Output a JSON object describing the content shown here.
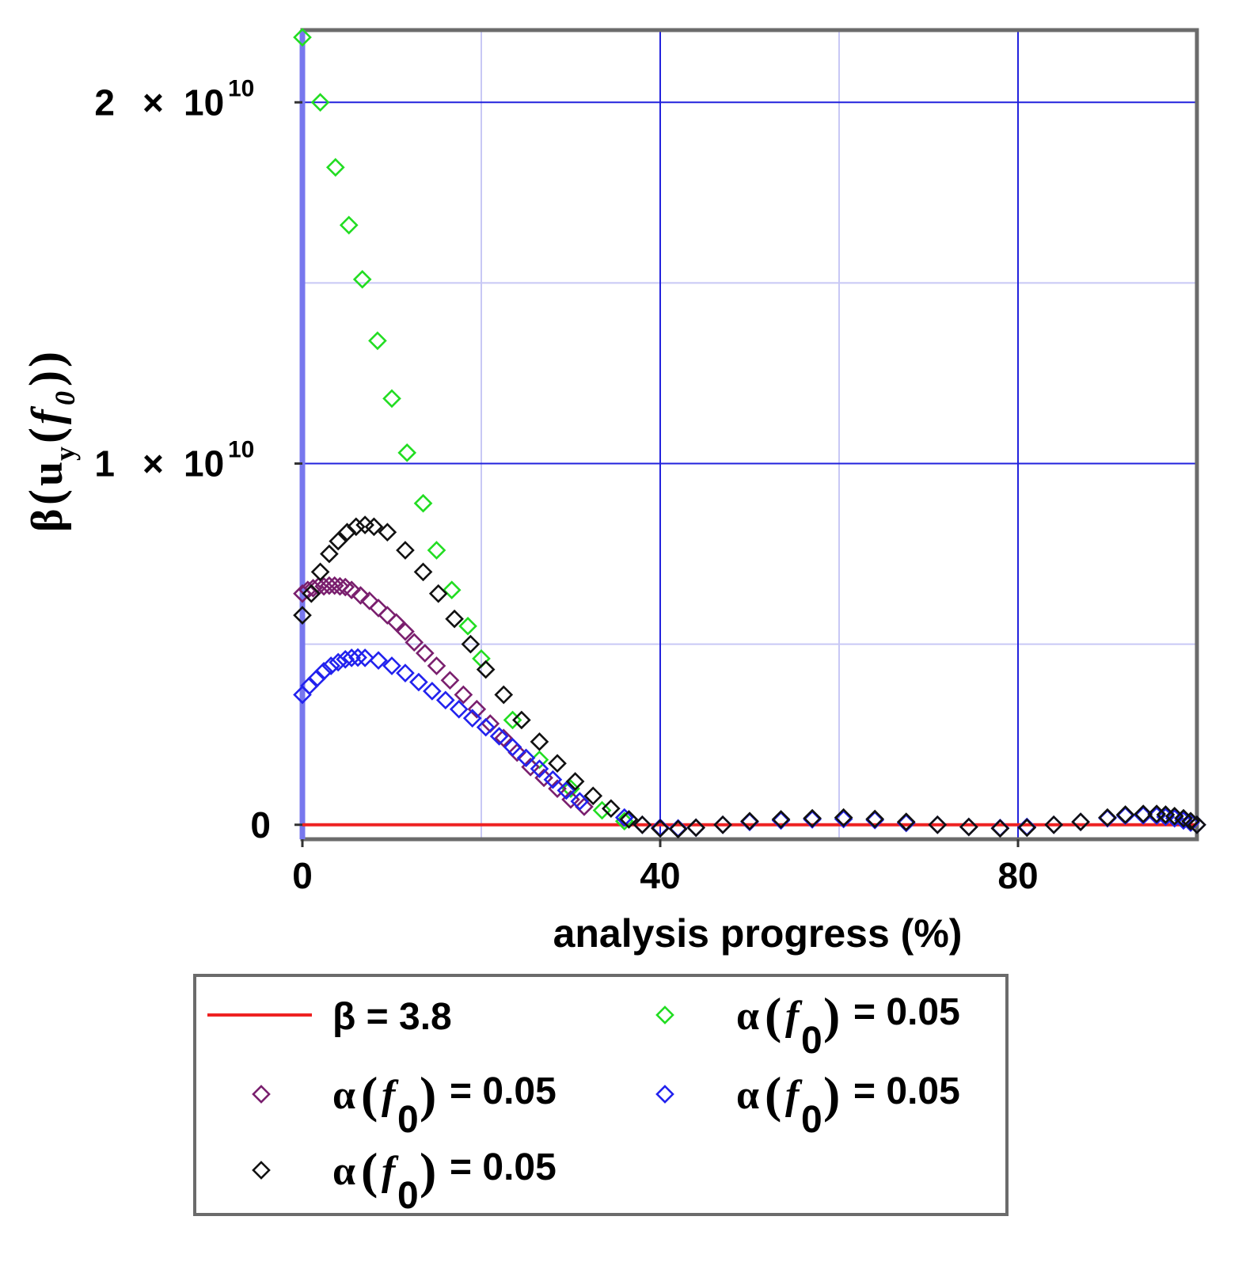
{
  "chart_data": {
    "type": "scatter",
    "xlabel": "analysis progress (%)",
    "ylabel": {
      "prefix": "β",
      "var": "u",
      "var_sub": "y",
      "arg": "f",
      "arg_sub": "0"
    },
    "xlim": [
      0,
      100
    ],
    "ylim": [
      -400000000,
      22000000000
    ],
    "x_ticks": [
      {
        "value": 0,
        "label": "0"
      },
      {
        "value": 40,
        "label": "40"
      },
      {
        "value": 80,
        "label": "80"
      }
    ],
    "y_ticks": [
      {
        "value": 0,
        "mantissa": "0",
        "times": "",
        "base": "",
        "exp": ""
      },
      {
        "value": 10000000000,
        "mantissa": "1",
        "times": "×",
        "base": "10",
        "exp": "10"
      },
      {
        "value": 20000000000,
        "mantissa": "2",
        "times": "×",
        "base": "10",
        "exp": "10"
      }
    ],
    "grid": true,
    "legend_position": "bottom",
    "series": [
      {
        "name": "β = 3.8",
        "legend": {
          "prefix": "β = 3.8"
        },
        "kind": "line",
        "color": "#ee2222",
        "x": [
          0,
          100
        ],
        "y": [
          0,
          0
        ]
      },
      {
        "name": "α(f0) = 0.05",
        "legend": {
          "prefix": "α",
          "arg": "f",
          "arg_sub": "0",
          "suffix": "= 0.05"
        },
        "kind": "markers",
        "color": "#22dd22",
        "x": [
          0,
          2,
          3.7,
          5.2,
          6.7,
          8.4,
          10,
          11.7,
          13.5,
          15,
          16.7,
          18.5,
          20,
          23.5,
          26.5,
          30,
          33.5,
          36
        ],
        "y": [
          21800000000,
          20000000000,
          18200000000,
          16600000000,
          15100000000,
          13400000000,
          11800000000,
          10300000000,
          8900000000,
          7600000000,
          6500000000,
          5500000000,
          4600000000,
          2900000000,
          1800000000,
          1000000000,
          400000000,
          100000000
        ]
      },
      {
        "name": "α(f0) = 0.05",
        "legend": {
          "prefix": "α",
          "arg": "f",
          "arg_sub": "0",
          "suffix": "= 0.05"
        },
        "kind": "markers",
        "color": "#7a1f6e",
        "x": [
          0,
          0.6,
          1.2,
          1.8,
          2.4,
          3,
          3.6,
          4.2,
          4.8,
          5.5,
          6.5,
          7.5,
          8.5,
          9.5,
          10.5,
          11.5,
          12.5,
          13.7,
          15,
          16.5,
          18,
          19.5,
          21,
          22.5,
          24,
          25.5,
          27,
          28.5,
          30,
          31.5
        ],
        "y": [
          6400000000,
          6500000000,
          6550000000,
          6600000000,
          6600000000,
          6620000000,
          6620000000,
          6600000000,
          6580000000,
          6500000000,
          6350000000,
          6200000000,
          6000000000,
          5800000000,
          5600000000,
          5350000000,
          5050000000,
          4750000000,
          4400000000,
          4000000000,
          3600000000,
          3200000000,
          2800000000,
          2400000000,
          2000000000,
          1600000000,
          1300000000,
          1000000000,
          700000000,
          500000000
        ]
      },
      {
        "name": "α(f0) = 0.05",
        "legend": {
          "prefix": "α",
          "arg": "f",
          "arg_sub": "0",
          "suffix": "= 0.05"
        },
        "kind": "markers",
        "color": "#2222ee",
        "x": [
          0,
          0.8,
          1.6,
          2.4,
          3.2,
          4,
          4.8,
          5.5,
          6.2,
          7,
          8.5,
          10,
          11.5,
          13,
          14.5,
          16,
          17.5,
          19,
          20.5,
          22,
          23.5,
          25,
          26.5,
          28,
          29.5,
          31,
          36,
          38,
          40,
          42,
          44,
          47,
          50,
          53.5,
          57,
          60.5,
          64,
          67.5,
          71,
          74.5,
          78,
          81,
          84,
          87,
          90,
          92,
          94,
          95.5,
          96.5,
          97.5,
          98.5,
          99.3,
          100
        ],
        "y": [
          3600000000,
          3850000000,
          4050000000,
          4250000000,
          4400000000,
          4500000000,
          4580000000,
          4620000000,
          4630000000,
          4620000000,
          4550000000,
          4400000000,
          4200000000,
          3950000000,
          3700000000,
          3450000000,
          3200000000,
          2950000000,
          2700000000,
          2450000000,
          2150000000,
          1850000000,
          1550000000,
          1250000000,
          950000000,
          650000000,
          200000000,
          0,
          -80000000,
          -100000000,
          -80000000,
          0,
          80000000,
          120000000,
          150000000,
          160000000,
          130000000,
          50000000,
          0,
          -60000000,
          -90000000,
          -60000000,
          0,
          80000000,
          180000000,
          250000000,
          260000000,
          250000000,
          220000000,
          180000000,
          120000000,
          60000000,
          0
        ]
      },
      {
        "name": "α(f0) = 0.05",
        "legend": {
          "prefix": "α",
          "arg": "f",
          "arg_sub": "0",
          "suffix": "= 0.05"
        },
        "kind": "markers",
        "color": "#111111",
        "x": [
          0,
          1,
          2,
          3,
          4,
          5,
          6,
          7,
          8,
          9.5,
          11.5,
          13.5,
          15.2,
          17,
          18.8,
          20.5,
          22.5,
          24.5,
          26.5,
          28.5,
          30.5,
          32.5,
          34.5,
          36.5,
          38,
          40,
          42,
          44,
          47,
          50,
          53.5,
          57,
          60.5,
          64,
          67.5,
          71,
          74.5,
          78,
          81,
          84,
          87,
          90,
          92,
          94,
          95.5,
          96.5,
          97.5,
          98.5,
          99.3,
          100
        ],
        "y": [
          5800000000,
          6400000000,
          7000000000,
          7500000000,
          7850000000,
          8100000000,
          8250000000,
          8300000000,
          8250000000,
          8100000000,
          7600000000,
          7000000000,
          6400000000,
          5700000000,
          5000000000,
          4300000000,
          3600000000,
          2900000000,
          2300000000,
          1700000000,
          1200000000,
          800000000,
          450000000,
          150000000,
          0,
          -100000000,
          -120000000,
          -80000000,
          0,
          100000000,
          150000000,
          180000000,
          200000000,
          160000000,
          80000000,
          0,
          -60000000,
          -100000000,
          -80000000,
          0,
          80000000,
          200000000,
          280000000,
          300000000,
          300000000,
          280000000,
          240000000,
          180000000,
          100000000,
          0
        ]
      }
    ]
  }
}
